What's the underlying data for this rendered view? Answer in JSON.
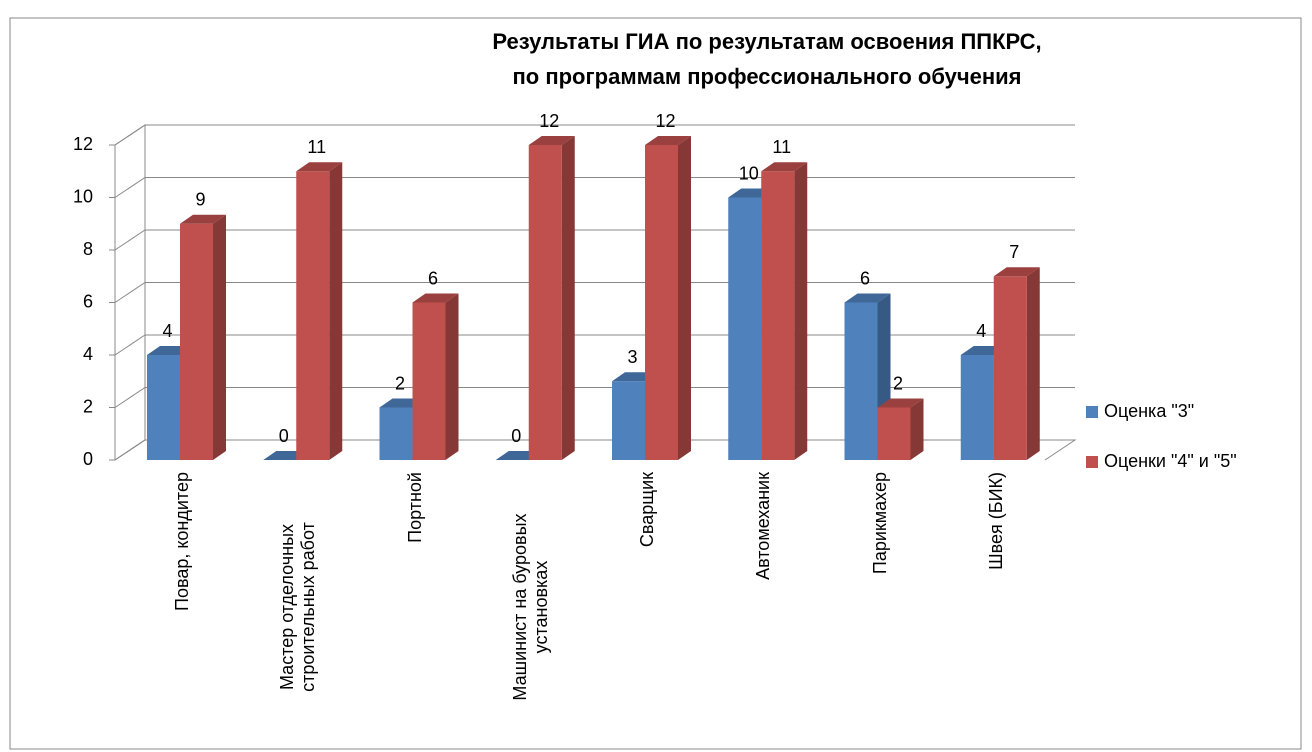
{
  "chart_data": {
    "type": "bar3d",
    "title": "Результаты ГИА по результатам освоения ППКРС, по программам профессионального обучения",
    "categories": [
      "Повар, кондитер",
      "Мастер отделочных строительных работ",
      "Портной",
      "Машинист на буровых установках",
      "Сварщик",
      "Автомеханик",
      "Парикмахер",
      "Швея (БИК)"
    ],
    "series": [
      {
        "name": "Оценка \"3\"",
        "color": "#4f81bd",
        "values": [
          4,
          0,
          2,
          0,
          3,
          10,
          6,
          4
        ]
      },
      {
        "name": "Оценки \"4\" и \"5\"",
        "color": "#c0504d",
        "values": [
          9,
          11,
          6,
          12,
          12,
          11,
          2,
          7
        ]
      }
    ],
    "ylim": [
      0,
      12
    ],
    "yticks": [
      0,
      2,
      4,
      6,
      8,
      10,
      12
    ],
    "grid": true,
    "legend": "right"
  }
}
